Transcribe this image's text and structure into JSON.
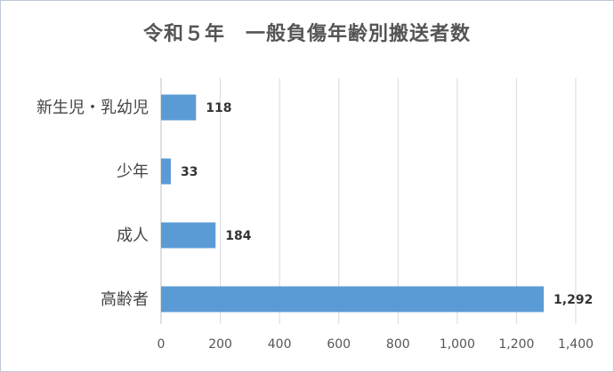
{
  "chart_data": {
    "type": "bar",
    "orientation": "horizontal",
    "title": "令和５年　一般負傷年齢別搬送者数",
    "categories": [
      "新生児・乳幼児",
      "少年",
      "成人",
      "高齢者"
    ],
    "values": [
      118,
      33,
      184,
      1292
    ],
    "data_labels": [
      "118",
      "33",
      "184",
      "1,292"
    ],
    "xlim": [
      0,
      1400
    ],
    "x_ticks": [
      0,
      200,
      400,
      600,
      800,
      1000,
      1200,
      1400
    ],
    "x_tick_labels": [
      "0",
      "200",
      "400",
      "600",
      "800",
      "1,000",
      "1,200",
      "1,400"
    ],
    "grid": true,
    "bar_color": "#5b9bd5",
    "legend": "none"
  }
}
